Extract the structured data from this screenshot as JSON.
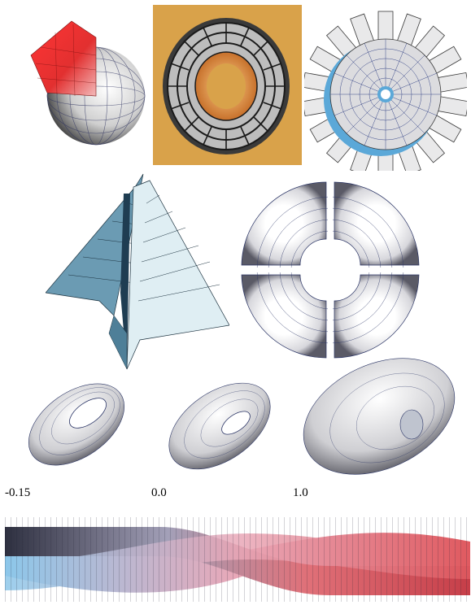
{
  "figures": {
    "sphere_wedge": {
      "accent": "#e8262a"
    },
    "torus_segments": {
      "background": "#d9a24a"
    },
    "finned_disc": {
      "fin_edge": "#5ba8d8"
    },
    "swept_fins": {
      "face_color": "#6b9bb3",
      "light_face": "#dfeef3"
    },
    "split_torus": {
      "face_color": "#f2f2f4"
    },
    "torus_series": {
      "labels": [
        "-0.15",
        "0.0",
        "1.0"
      ]
    },
    "twisted_bands": {
      "colors": [
        "#e05a60",
        "#7fb8e0",
        "#f0a3a8"
      ]
    }
  }
}
